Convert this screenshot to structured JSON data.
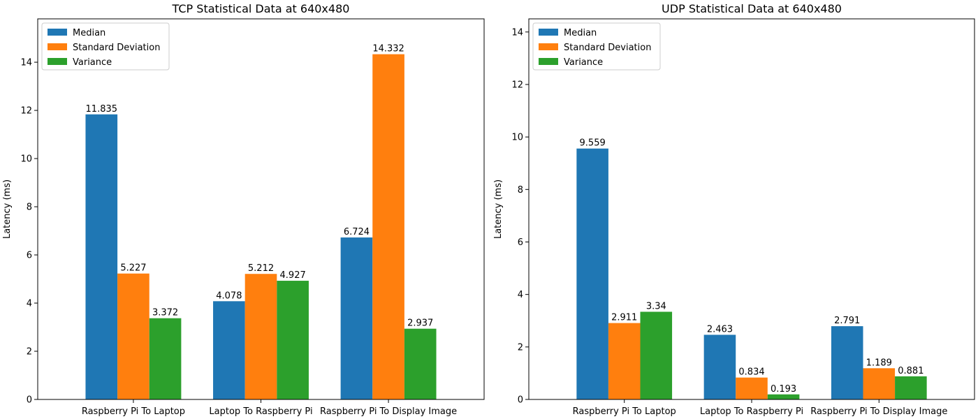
{
  "chart_data": [
    {
      "type": "bar",
      "title": "TCP Statistical Data at 640x480",
      "xlabel": "",
      "ylabel": "Latency (ms)",
      "categories": [
        "Raspberry Pi To Laptop",
        "Laptop To Raspberry Pi",
        "Raspberry Pi To Display Image"
      ],
      "series": [
        {
          "name": "Median",
          "color": "#1f77b4",
          "values": [
            11.835,
            4.078,
            6.724
          ],
          "labels": [
            "11.835",
            "4.078",
            "6.724"
          ]
        },
        {
          "name": "Standard Deviation",
          "color": "#ff7f0e",
          "values": [
            5.227,
            5.212,
            14.332
          ],
          "labels": [
            "5.227",
            "5.212",
            "14.332"
          ]
        },
        {
          "name": "Variance",
          "color": "#2ca02c",
          "values": [
            3.372,
            4.927,
            2.937
          ],
          "labels": [
            "3.372",
            "4.927",
            "2.937"
          ]
        }
      ],
      "ylim": [
        0,
        15.8
      ],
      "yticks": [
        0,
        2,
        4,
        6,
        8,
        10,
        12,
        14
      ],
      "legend": "upper-left",
      "grid": false
    },
    {
      "type": "bar",
      "title": "UDP Statistical Data at 640x480",
      "xlabel": "",
      "ylabel": "Latency (ms)",
      "categories": [
        "Raspberry Pi To Laptop",
        "Laptop To Raspberry Pi",
        "Raspberry Pi To Display Image"
      ],
      "series": [
        {
          "name": "Median",
          "color": "#1f77b4",
          "values": [
            9.559,
            2.463,
            2.791
          ],
          "labels": [
            "9.559",
            "2.463",
            "2.791"
          ]
        },
        {
          "name": "Standard Deviation",
          "color": "#ff7f0e",
          "values": [
            2.911,
            0.834,
            1.189
          ],
          "labels": [
            "2.911",
            "0.834",
            "1.189"
          ]
        },
        {
          "name": "Variance",
          "color": "#2ca02c",
          "values": [
            3.34,
            0.193,
            0.881
          ],
          "labels": [
            "3.34",
            "0.193",
            "0.881"
          ]
        }
      ],
      "ylim": [
        0,
        14.5
      ],
      "yticks": [
        0,
        2,
        4,
        6,
        8,
        10,
        12,
        14
      ],
      "legend": "upper-left",
      "grid": false
    }
  ]
}
